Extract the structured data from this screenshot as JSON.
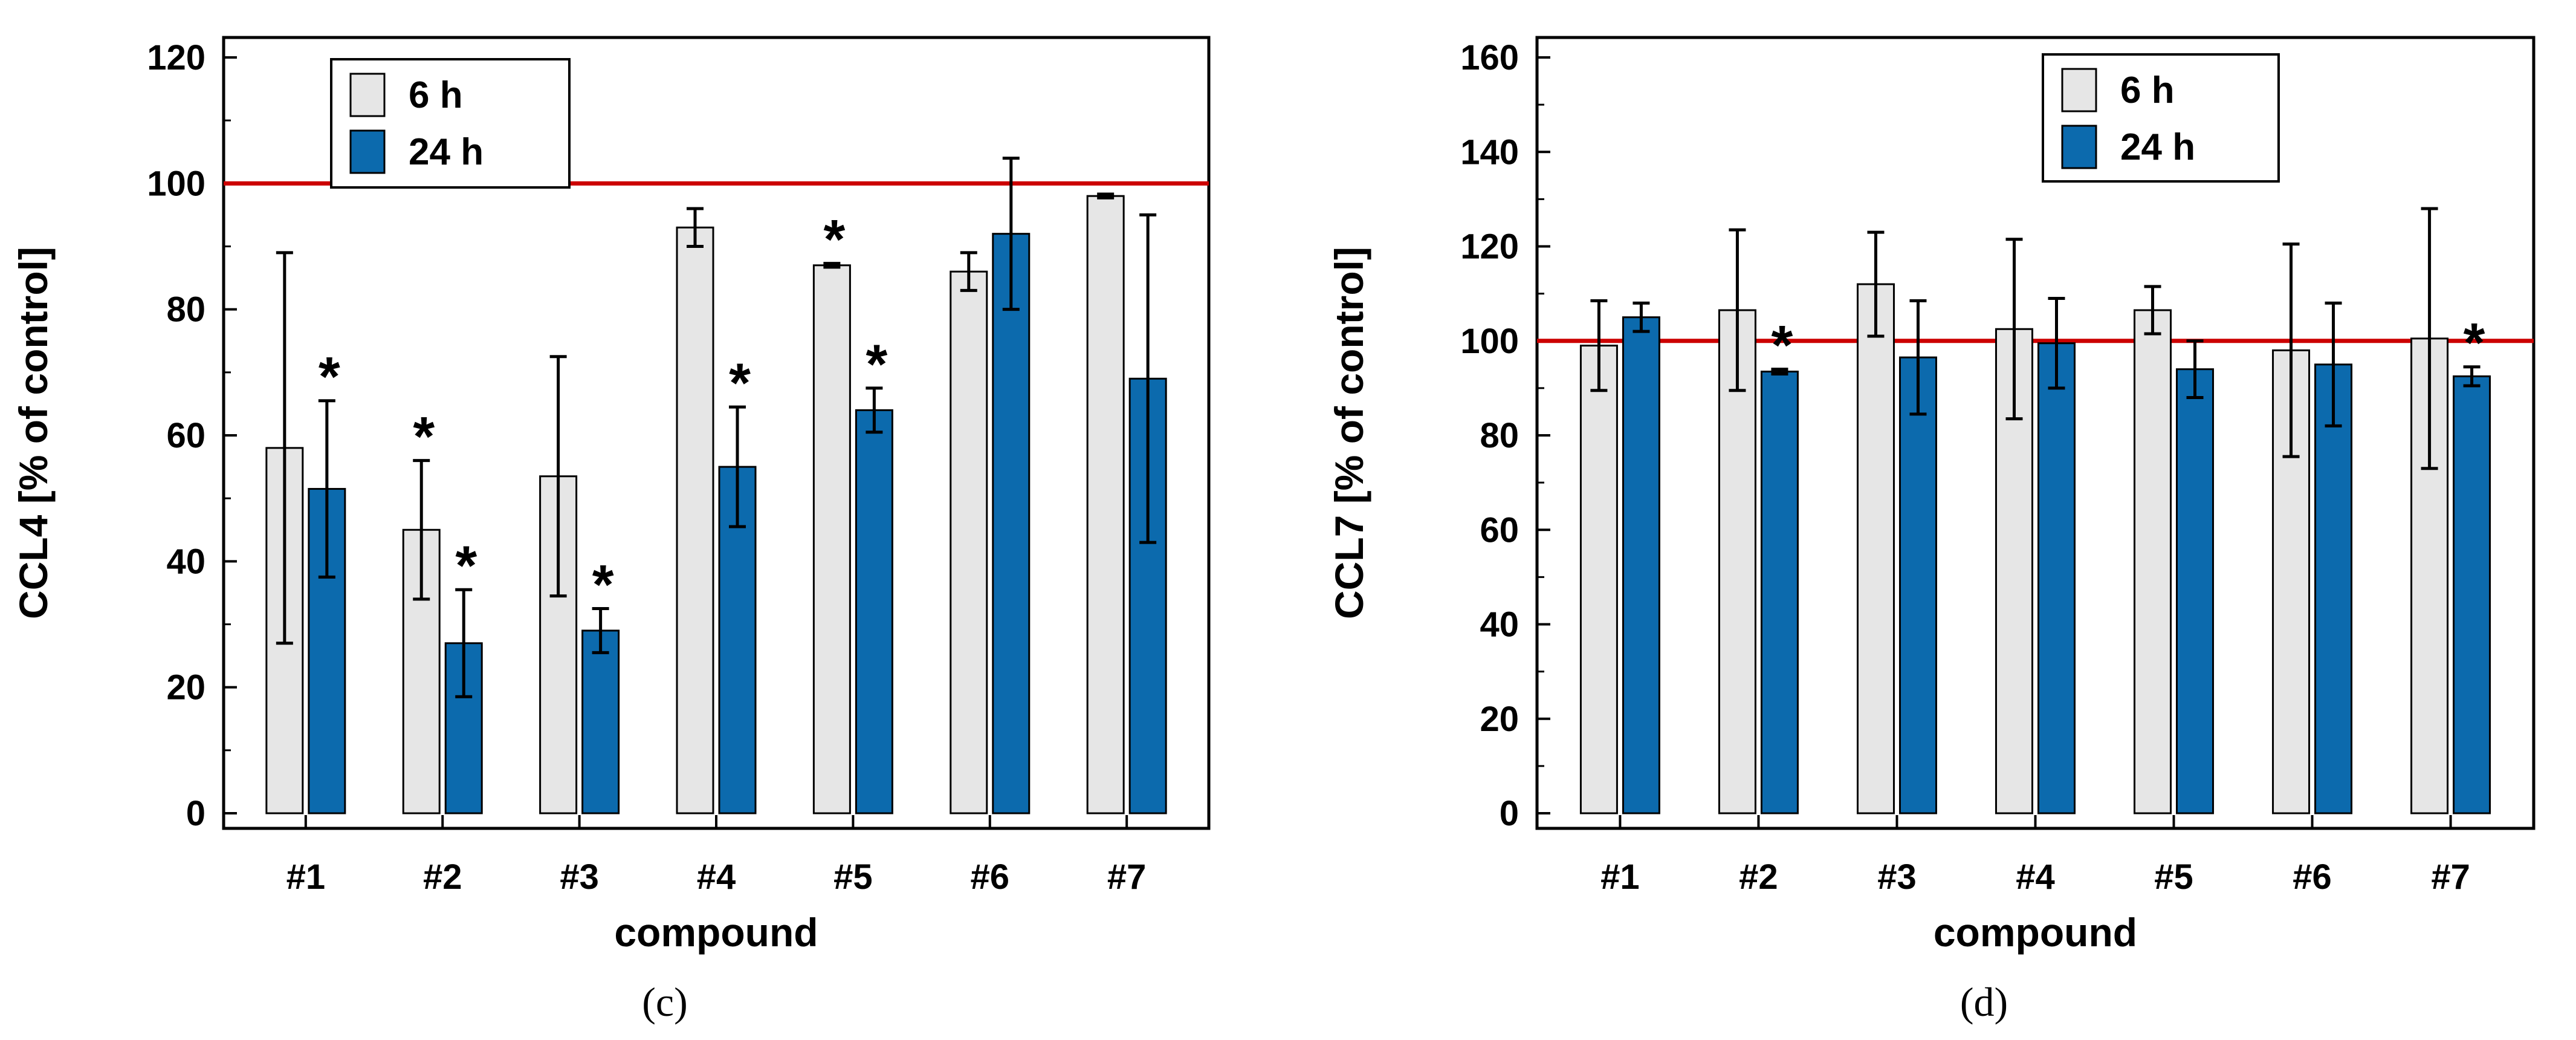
{
  "chart_data": [
    {
      "type": "bar",
      "panel_label": "(c)",
      "xlabel": "compound",
      "ylabel": "CCL4  [% of control]",
      "ylim": [
        0,
        120
      ],
      "ytick_step": 20,
      "yticks": [
        "0",
        "20",
        "40",
        "60",
        "80",
        "100",
        "120"
      ],
      "reference_line": {
        "value": 100,
        "color": "#cc0000"
      },
      "categories": [
        "#1",
        "#2",
        "#3",
        "#4",
        "#5",
        "#6",
        "#7"
      ],
      "legend_position": "top-left",
      "series": [
        {
          "name": "6 h",
          "color": "#e6e6e6",
          "values": [
            58,
            45,
            53.5,
            93,
            87,
            86,
            98
          ],
          "err": [
            31,
            11,
            19,
            3,
            0.3,
            3,
            0.3
          ],
          "significant": [
            false,
            true,
            false,
            false,
            true,
            false,
            false
          ]
        },
        {
          "name": "24 h",
          "color": "#0c6aad",
          "values": [
            51.5,
            27,
            29,
            55,
            64,
            92,
            69
          ],
          "err": [
            14,
            8.5,
            3.5,
            9.5,
            3.5,
            12,
            26
          ],
          "significant": [
            true,
            true,
            true,
            true,
            true,
            false,
            false
          ]
        }
      ]
    },
    {
      "type": "bar",
      "panel_label": "(d)",
      "xlabel": "compound",
      "ylabel": "CCL7  [% of control]",
      "ylim": [
        0,
        160
      ],
      "ytick_step": 20,
      "yticks": [
        "0",
        "20",
        "40",
        "60",
        "80",
        "100",
        "120",
        "140",
        "160"
      ],
      "reference_line": {
        "value": 100,
        "color": "#cc0000"
      },
      "categories": [
        "#1",
        "#2",
        "#3",
        "#4",
        "#5",
        "#6",
        "#7"
      ],
      "legend_position": "top-right",
      "series": [
        {
          "name": "6 h",
          "color": "#e6e6e6",
          "values": [
            99,
            106.5,
            112,
            102.5,
            106.5,
            98,
            100.5
          ],
          "err": [
            9.5,
            17,
            11,
            19,
            5,
            22.5,
            27.5
          ],
          "significant": [
            false,
            false,
            false,
            false,
            false,
            false,
            false
          ]
        },
        {
          "name": "24 h",
          "color": "#0c6aad",
          "values": [
            105,
            93.5,
            96.5,
            99.5,
            94,
            95,
            92.5
          ],
          "err": [
            3,
            0.5,
            12,
            9.5,
            6,
            13,
            2
          ],
          "significant": [
            false,
            true,
            false,
            false,
            false,
            false,
            true
          ]
        }
      ]
    }
  ],
  "significance_marker": "*"
}
